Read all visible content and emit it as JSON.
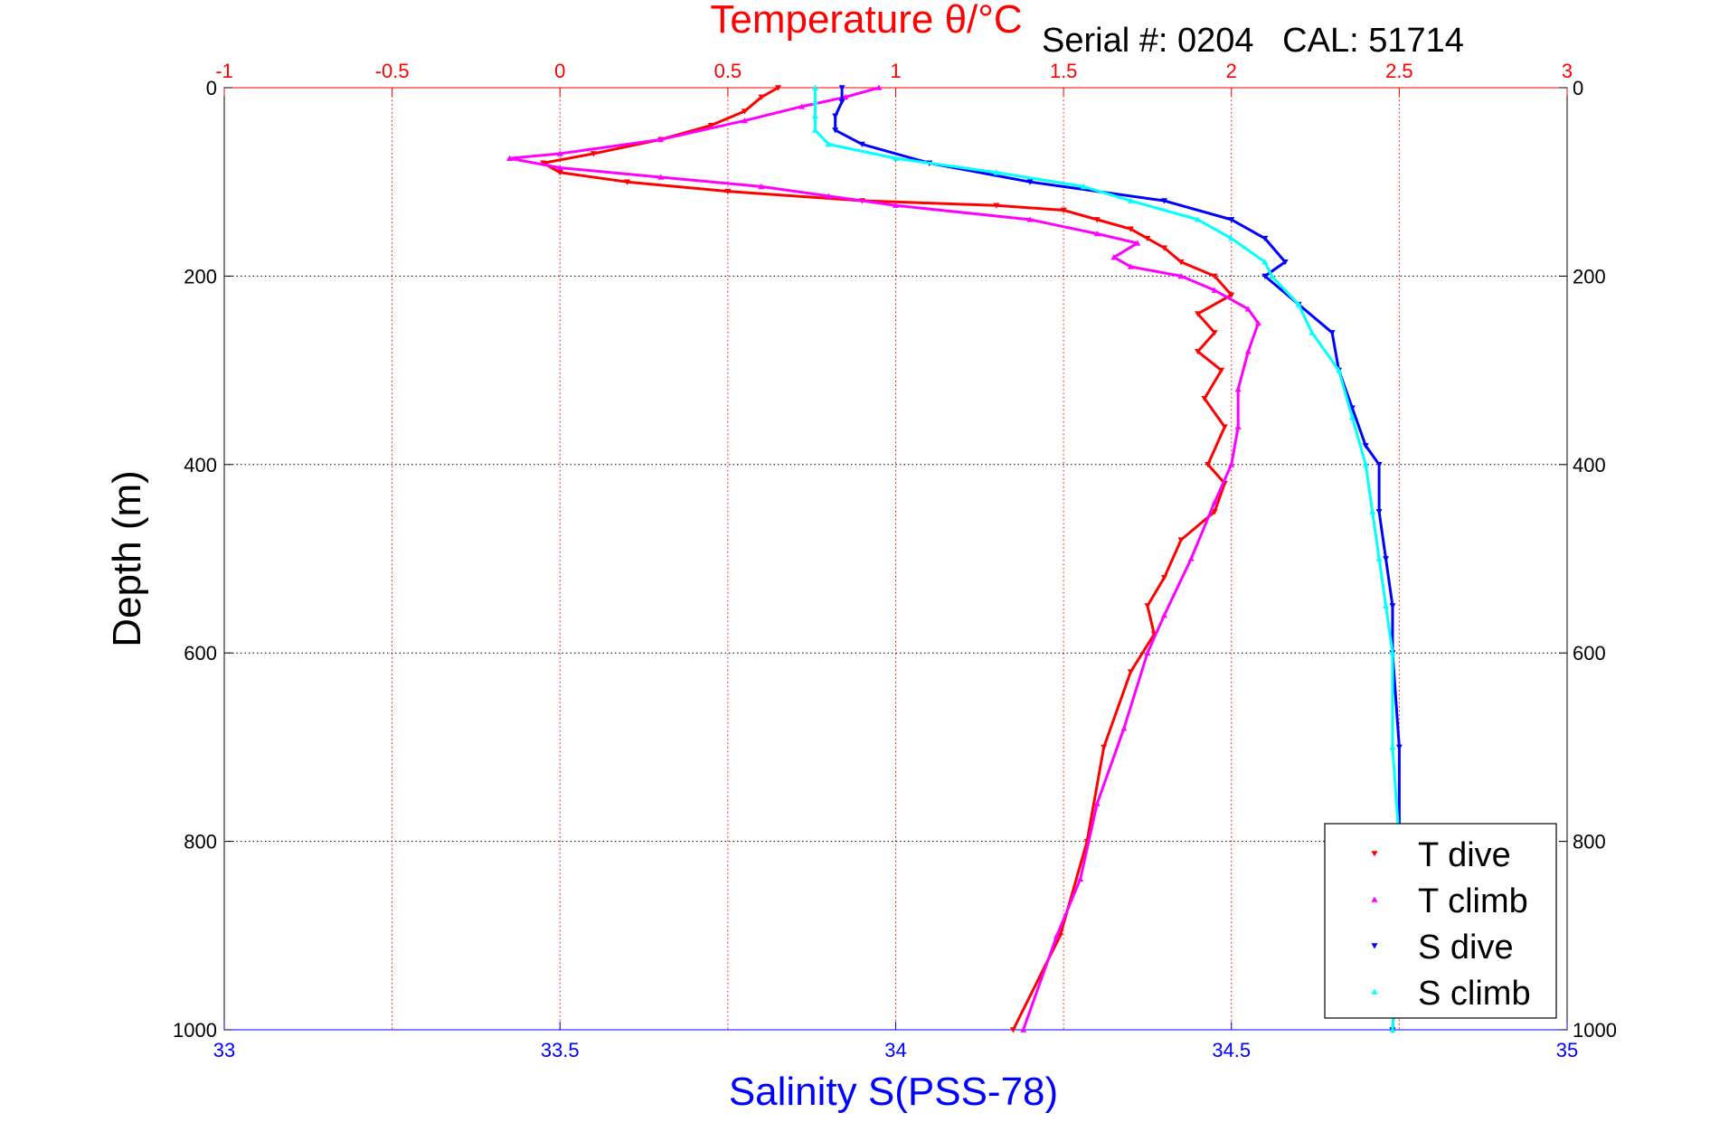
{
  "chart_data": {
    "type": "scatter",
    "title": "Temperature θ/°C",
    "annotation": "Serial #: 0204   CAL: 51714",
    "ylabel": "Depth (m)",
    "xlabel_bottom": "Salinity S(PSS-78)",
    "ylim": [
      0,
      1000
    ],
    "y_reversed": true,
    "x_top": {
      "range": [
        -1,
        3
      ],
      "ticks": [
        "-1",
        "-0.5",
        "0",
        "0.5",
        "1",
        "1.5",
        "2",
        "2.5",
        "3"
      ],
      "color": "#ff0000"
    },
    "x_bottom": {
      "range": [
        33,
        35
      ],
      "ticks": [
        "33",
        "33.5",
        "34",
        "34.5",
        "35"
      ],
      "color": "#0000ff"
    },
    "y_ticks": [
      "0",
      "200",
      "400",
      "600",
      "800",
      "1000"
    ],
    "grid": true,
    "legend_position": "bottom-right",
    "series": [
      {
        "name": "T dive",
        "axis": "top",
        "color": "#ff0000",
        "marker": "triangle-down",
        "points": [
          [
            0.65,
            0
          ],
          [
            0.6,
            10
          ],
          [
            0.55,
            25
          ],
          [
            0.45,
            40
          ],
          [
            0.3,
            55
          ],
          [
            0.1,
            70
          ],
          [
            -0.05,
            80
          ],
          [
            0.0,
            90
          ],
          [
            0.2,
            100
          ],
          [
            0.5,
            110
          ],
          [
            0.9,
            120
          ],
          [
            1.3,
            125
          ],
          [
            1.5,
            130
          ],
          [
            1.6,
            140
          ],
          [
            1.7,
            150
          ],
          [
            1.75,
            160
          ],
          [
            1.8,
            170
          ],
          [
            1.85,
            185
          ],
          [
            1.95,
            200
          ],
          [
            2.0,
            220
          ],
          [
            1.9,
            240
          ],
          [
            1.95,
            260
          ],
          [
            1.9,
            280
          ],
          [
            1.97,
            300
          ],
          [
            1.92,
            330
          ],
          [
            1.98,
            360
          ],
          [
            1.93,
            400
          ],
          [
            1.98,
            420
          ],
          [
            1.95,
            450
          ],
          [
            1.85,
            480
          ],
          [
            1.8,
            520
          ],
          [
            1.75,
            550
          ],
          [
            1.77,
            580
          ],
          [
            1.7,
            620
          ],
          [
            1.62,
            700
          ],
          [
            1.57,
            800
          ],
          [
            1.49,
            900
          ],
          [
            1.35,
            1000
          ]
        ]
      },
      {
        "name": "T climb",
        "axis": "top",
        "color": "#ff00ff",
        "marker": "triangle-up",
        "points": [
          [
            0.95,
            0
          ],
          [
            0.85,
            10
          ],
          [
            0.72,
            20
          ],
          [
            0.55,
            35
          ],
          [
            0.3,
            55
          ],
          [
            0.0,
            70
          ],
          [
            -0.15,
            75
          ],
          [
            0.0,
            85
          ],
          [
            0.3,
            95
          ],
          [
            0.6,
            105
          ],
          [
            0.8,
            115
          ],
          [
            1.0,
            125
          ],
          [
            1.4,
            140
          ],
          [
            1.6,
            155
          ],
          [
            1.72,
            165
          ],
          [
            1.65,
            180
          ],
          [
            1.7,
            190
          ],
          [
            1.85,
            200
          ],
          [
            1.95,
            215
          ],
          [
            2.05,
            235
          ],
          [
            2.08,
            250
          ],
          [
            2.05,
            280
          ],
          [
            2.02,
            320
          ],
          [
            2.02,
            360
          ],
          [
            2.0,
            400
          ],
          [
            1.95,
            440
          ],
          [
            1.88,
            500
          ],
          [
            1.8,
            560
          ],
          [
            1.75,
            600
          ],
          [
            1.68,
            680
          ],
          [
            1.6,
            760
          ],
          [
            1.55,
            840
          ],
          [
            1.48,
            900
          ],
          [
            1.38,
            1000
          ]
        ]
      },
      {
        "name": "S dive",
        "axis": "bottom",
        "color": "#0000ff",
        "marker": "triangle-down",
        "points": [
          [
            33.92,
            0
          ],
          [
            33.92,
            15
          ],
          [
            33.91,
            30
          ],
          [
            33.91,
            45
          ],
          [
            33.95,
            60
          ],
          [
            34.05,
            80
          ],
          [
            34.2,
            100
          ],
          [
            34.4,
            120
          ],
          [
            34.5,
            140
          ],
          [
            34.55,
            160
          ],
          [
            34.58,
            185
          ],
          [
            34.55,
            200
          ],
          [
            34.6,
            230
          ],
          [
            34.65,
            260
          ],
          [
            34.66,
            300
          ],
          [
            34.68,
            340
          ],
          [
            34.7,
            380
          ],
          [
            34.72,
            400
          ],
          [
            34.72,
            450
          ],
          [
            34.73,
            500
          ],
          [
            34.74,
            550
          ],
          [
            34.74,
            600
          ],
          [
            34.75,
            700
          ],
          [
            34.75,
            800
          ],
          [
            34.75,
            900
          ],
          [
            34.74,
            1000
          ]
        ]
      },
      {
        "name": "S climb",
        "axis": "bottom",
        "color": "#00ffff",
        "marker": "triangle-up",
        "points": [
          [
            33.88,
            0
          ],
          [
            33.88,
            15
          ],
          [
            33.88,
            30
          ],
          [
            33.88,
            45
          ],
          [
            33.9,
            60
          ],
          [
            34.0,
            75
          ],
          [
            34.15,
            90
          ],
          [
            34.28,
            105
          ],
          [
            34.35,
            120
          ],
          [
            34.45,
            140
          ],
          [
            34.5,
            160
          ],
          [
            34.55,
            185
          ],
          [
            34.56,
            200
          ],
          [
            34.6,
            230
          ],
          [
            34.62,
            260
          ],
          [
            34.66,
            300
          ],
          [
            34.68,
            350
          ],
          [
            34.7,
            400
          ],
          [
            34.71,
            450
          ],
          [
            34.72,
            500
          ],
          [
            34.73,
            550
          ],
          [
            34.74,
            600
          ],
          [
            34.74,
            700
          ],
          [
            34.75,
            800
          ],
          [
            34.75,
            900
          ],
          [
            34.74,
            1000
          ]
        ]
      }
    ]
  }
}
